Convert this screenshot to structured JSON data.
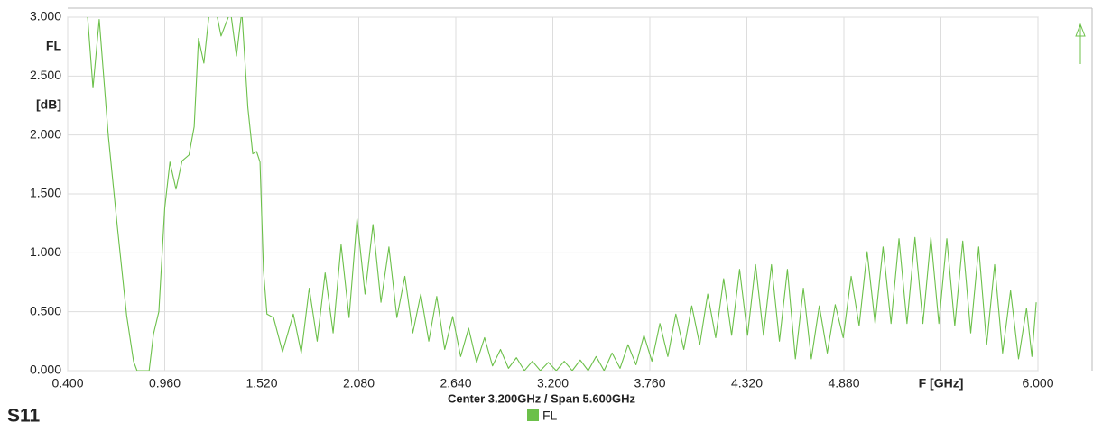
{
  "chart_data": {
    "type": "line",
    "title": "S11",
    "subtitle": "Center 3.200GHz / Span 5.600GHz",
    "ylabel": "FL",
    "yunit": "[dB]",
    "grid": true,
    "xlim": [
      0.4,
      6.0
    ],
    "ylim": [
      0,
      3
    ],
    "xticks": [
      {
        "value": 0.4,
        "label": "0.400"
      },
      {
        "value": 0.96,
        "label": "0.960"
      },
      {
        "value": 1.52,
        "label": "1.520"
      },
      {
        "value": 2.08,
        "label": "2.080"
      },
      {
        "value": 2.64,
        "label": "2.640"
      },
      {
        "value": 3.2,
        "label": "3.200"
      },
      {
        "value": 3.76,
        "label": "3.760"
      },
      {
        "value": 4.32,
        "label": "4.320"
      },
      {
        "value": 4.88,
        "label": "4.880"
      },
      {
        "value": 5.44,
        "label": "F [GHz]"
      },
      {
        "value": 6.0,
        "label": "6.000"
      }
    ],
    "yticks": [
      {
        "value": 0,
        "label": "0.000"
      },
      {
        "value": 0.5,
        "label": "0.500"
      },
      {
        "value": 1,
        "label": "1.000"
      },
      {
        "value": 1.5,
        "label": "1.500"
      },
      {
        "value": 2,
        "label": "2.000"
      },
      {
        "value": 2.5,
        "label": "2.500"
      },
      {
        "value": 3,
        "label": "3.000"
      }
    ],
    "x": [
      0.4,
      0.515,
      0.546,
      0.582,
      0.634,
      0.686,
      0.74,
      0.78,
      0.8,
      0.87,
      0.895,
      0.926,
      0.96,
      0.99,
      1.025,
      1.06,
      1.1,
      1.13,
      1.155,
      1.186,
      1.218,
      1.25,
      1.285,
      1.34,
      1.374,
      1.405,
      1.44,
      1.468,
      1.49,
      1.51,
      1.53,
      1.55,
      1.588,
      1.64,
      1.702,
      1.748,
      1.794,
      1.84,
      1.886,
      1.932,
      1.978,
      2.024,
      2.07,
      2.116,
      2.162,
      2.208,
      2.254,
      2.3,
      2.346,
      2.392,
      2.438,
      2.484,
      2.53,
      2.576,
      2.622,
      2.668,
      2.714,
      2.76,
      2.806,
      2.852,
      2.898,
      2.944,
      2.99,
      3.036,
      3.082,
      3.128,
      3.174,
      3.22,
      3.266,
      3.312,
      3.358,
      3.404,
      3.45,
      3.496,
      3.542,
      3.588,
      3.634,
      3.68,
      3.726,
      3.772,
      3.818,
      3.864,
      3.91,
      3.956,
      4.002,
      4.048,
      4.094,
      4.14,
      4.186,
      4.232,
      4.278,
      4.324,
      4.37,
      4.416,
      4.462,
      4.508,
      4.554,
      4.6,
      4.646,
      4.692,
      4.738,
      4.784,
      4.83,
      4.876,
      4.922,
      4.968,
      5.014,
      5.06,
      5.106,
      5.152,
      5.198,
      5.244,
      5.29,
      5.336,
      5.382,
      5.428,
      5.474,
      5.52,
      5.566,
      5.612,
      5.658,
      5.704,
      5.75,
      5.796,
      5.842,
      5.888,
      5.934,
      5.965,
      5.99
    ],
    "series": [
      {
        "name": "FL",
        "color": "#6cc04a",
        "values": [
          3.1,
          3.0,
          2.4,
          2.98,
          2.0,
          1.23,
          0.47,
          0.08,
          0.0,
          0.0,
          0.31,
          0.5,
          1.38,
          1.77,
          1.54,
          1.78,
          1.83,
          2.07,
          2.82,
          2.61,
          3.05,
          3.1,
          2.84,
          3.05,
          2.67,
          3.05,
          2.23,
          1.84,
          1.86,
          1.77,
          0.85,
          0.48,
          0.45,
          0.16,
          0.48,
          0.15,
          0.7,
          0.25,
          0.83,
          0.32,
          1.07,
          0.45,
          1.29,
          0.65,
          1.24,
          0.58,
          1.05,
          0.45,
          0.8,
          0.32,
          0.65,
          0.25,
          0.63,
          0.18,
          0.46,
          0.12,
          0.36,
          0.07,
          0.28,
          0.04,
          0.18,
          0.02,
          0.11,
          0.0,
          0.08,
          0.0,
          0.07,
          0.0,
          0.08,
          0.0,
          0.09,
          0.0,
          0.12,
          0.0,
          0.15,
          0.02,
          0.22,
          0.05,
          0.3,
          0.08,
          0.4,
          0.12,
          0.48,
          0.18,
          0.55,
          0.22,
          0.65,
          0.28,
          0.78,
          0.3,
          0.86,
          0.3,
          0.9,
          0.3,
          0.9,
          0.25,
          0.86,
          0.1,
          0.7,
          0.1,
          0.55,
          0.15,
          0.56,
          0.28,
          0.8,
          0.38,
          1.01,
          0.4,
          1.05,
          0.4,
          1.12,
          0.4,
          1.13,
          0.4,
          1.13,
          0.4,
          1.12,
          0.38,
          1.1,
          0.32,
          1.05,
          0.22,
          0.9,
          0.15,
          0.68,
          0.1,
          0.53,
          0.12,
          0.58
        ]
      }
    ]
  }
}
